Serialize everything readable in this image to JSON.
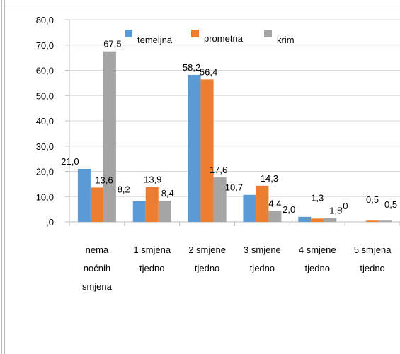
{
  "chart_data": {
    "type": "bar",
    "categories": [
      [
        "nema",
        "noćnih",
        "smjena"
      ],
      [
        "1 smjena",
        "tjedno"
      ],
      [
        "2 smjene",
        "tjedno"
      ],
      [
        "3 smjene",
        "tjedno"
      ],
      [
        "4 smjene",
        "tjedno"
      ],
      [
        "5 smjena",
        "tjedno"
      ]
    ],
    "series": [
      {
        "name": "temeljna",
        "color": "#5b9bd5",
        "values": [
          21.0,
          8.2,
          58.2,
          10.7,
          2.0,
          0.0
        ],
        "labels": [
          "21,0",
          "8,2",
          "58,2",
          "10,7",
          "2,0",
          ",0"
        ]
      },
      {
        "name": "prometna",
        "color": "#ed7d31",
        "values": [
          13.6,
          13.9,
          56.4,
          14.3,
          1.3,
          0.5
        ],
        "labels": [
          "13,6",
          "13,9",
          "56,4",
          "14,3",
          "1,3",
          "0,5"
        ]
      },
      {
        "name": "krim",
        "color": "#a5a5a5",
        "values": [
          67.5,
          8.4,
          17.6,
          4.4,
          1.5,
          0.5
        ],
        "labels": [
          "67,5",
          "8,4",
          "17,6",
          "4,4",
          "1,5",
          "0,5"
        ]
      }
    ],
    "ylim": [
      0,
      80
    ],
    "yticks": [
      0,
      10,
      20,
      30,
      40,
      50,
      60,
      70,
      80
    ],
    "ytick_labels": [
      ",0",
      "10,0",
      "20,0",
      "30,0",
      "40,0",
      "50,0",
      "60,0",
      "70,0",
      "80,0"
    ],
    "grid": true,
    "legend_position": "top",
    "title": "",
    "xlabel": "",
    "ylabel": ""
  }
}
